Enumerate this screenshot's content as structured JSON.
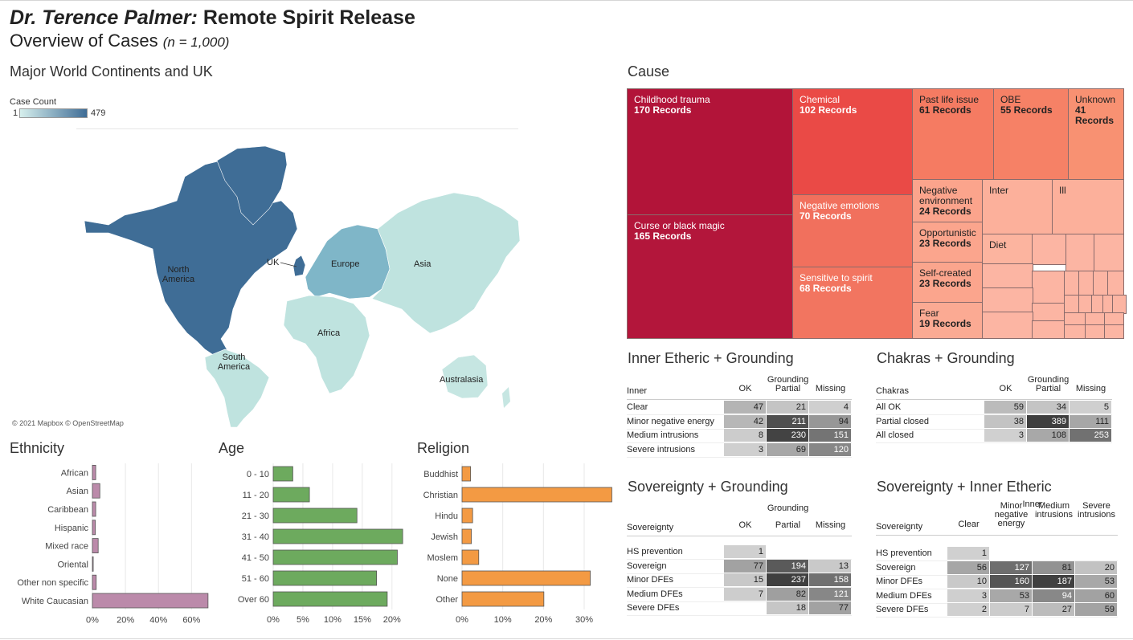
{
  "title": {
    "name": "Dr. Terence Palmer:",
    "rest": " Remote Spirit Release",
    "sub": "Overview of Cases",
    "n": "(n = 1,000)"
  },
  "map": {
    "title": "Major World Continents and UK",
    "legend_title": "Case Count",
    "legend_min": "1",
    "legend_max": "479",
    "attribution": "© 2021 Mapbox © OpenStreetMap",
    "labels": {
      "north_america": "North\nAmerica",
      "south_america": "South\nAmerica",
      "uk": "UK",
      "europe": "Europe",
      "asia": "Asia",
      "africa": "Africa",
      "australasia": "Australasia"
    },
    "colors": {
      "low": "#c6e6e2",
      "high": "#3f6d96"
    }
  },
  "cause": {
    "title": "Cause",
    "cells": [
      {
        "name": "Childhood trauma",
        "count": "170 Records",
        "color": "#b21439"
      },
      {
        "name": "Curse or black magic",
        "count": "165 Records",
        "color": "#b3163b"
      },
      {
        "name": "Chemical",
        "count": "102 Records",
        "color": "#ea4a46"
      },
      {
        "name": "Negative emotions",
        "count": "70 Records",
        "color": "#f1705d"
      },
      {
        "name": "Sensitive to spirit",
        "count": "68 Records",
        "color": "#f27560"
      },
      {
        "name": "Past life issue",
        "count": "61 Records",
        "color": "#f57b62"
      },
      {
        "name": "OBE",
        "count": "55 Records",
        "color": "#f68166"
      },
      {
        "name": "Unknown",
        "count": "41 Records",
        "color": "#f89172"
      },
      {
        "name": "Negative environment",
        "count": "24 Records",
        "color": "#fba48c"
      },
      {
        "name": "Opportunistic",
        "count": "23 Records",
        "color": "#fba58d"
      },
      {
        "name": "Self-created",
        "count": "23 Records",
        "color": "#fba58d"
      },
      {
        "name": "Fear",
        "count": "19 Records",
        "color": "#fbaa93"
      },
      {
        "name": "Inter",
        "count": "",
        "color": "#fcb09b"
      },
      {
        "name": "Ill",
        "count": "",
        "color": "#fcb09b"
      },
      {
        "name": "Diet",
        "count": "",
        "color": "#fcb49f"
      }
    ]
  },
  "inner_grounding": {
    "title": "Inner Etheric + Grounding",
    "col_group": "Grounding",
    "row_header": "Inner",
    "cols": [
      "OK",
      "Partial",
      "Missing"
    ],
    "rows": [
      {
        "label": "Clear",
        "values": [
          "47",
          "21",
          "4"
        ]
      },
      {
        "label": "Minor negative energy",
        "values": [
          "42",
          "211",
          "94"
        ]
      },
      {
        "label": "Medium intrusions",
        "values": [
          "8",
          "230",
          "151"
        ]
      },
      {
        "label": "Severe intrusions",
        "values": [
          "3",
          "69",
          "120"
        ]
      }
    ]
  },
  "chakras_grounding": {
    "title": "Chakras + Grounding",
    "col_group": "Grounding",
    "row_header": "Chakras",
    "cols": [
      "OK",
      "Partial",
      "Missing"
    ],
    "rows": [
      {
        "label": "All OK",
        "values": [
          "59",
          "34",
          "5"
        ]
      },
      {
        "label": "Partial closed",
        "values": [
          "38",
          "389",
          "111"
        ]
      },
      {
        "label": "All closed",
        "values": [
          "3",
          "108",
          "253"
        ]
      }
    ]
  },
  "sovereignty_grounding": {
    "title": "Sovereignty + Grounding",
    "col_group": "Grounding",
    "row_header": "Sovereignty",
    "cols": [
      "OK",
      "Partial",
      "Missing"
    ],
    "rows": [
      {
        "label": "HS prevention",
        "values": [
          "1",
          "",
          ""
        ]
      },
      {
        "label": "Sovereign",
        "values": [
          "77",
          "194",
          "13"
        ]
      },
      {
        "label": "Minor DFEs",
        "values": [
          "15",
          "237",
          "158"
        ]
      },
      {
        "label": "Medium DFEs",
        "values": [
          "7",
          "82",
          "121"
        ]
      },
      {
        "label": "Severe DFEs",
        "values": [
          "",
          "18",
          "77"
        ]
      }
    ]
  },
  "sovereignty_inner": {
    "title": "Sovereignty + Inner Etheric",
    "col_group": "Inner",
    "row_header": "Sovereignty",
    "cols": [
      "Clear",
      "Minor\nnegative\nenergy",
      "Medium\nintrusions",
      "Severe\nintrusions"
    ],
    "rows": [
      {
        "label": "HS prevention",
        "values": [
          "1",
          "",
          "",
          ""
        ]
      },
      {
        "label": "Sovereign",
        "values": [
          "56",
          "127",
          "81",
          "20"
        ]
      },
      {
        "label": "Minor DFEs",
        "values": [
          "10",
          "160",
          "187",
          "53"
        ]
      },
      {
        "label": "Medium DFEs",
        "values": [
          "3",
          "53",
          "94",
          "60"
        ]
      },
      {
        "label": "Severe DFEs",
        "values": [
          "2",
          "7",
          "27",
          "59"
        ]
      }
    ]
  },
  "chart_data": [
    {
      "type": "bar",
      "title": "Ethnicity",
      "orientation": "horizontal",
      "categories": [
        "African",
        "Asian",
        "Caribbean",
        "Hispanic",
        "Mixed race",
        "Oriental",
        "Other non specific",
        "White Caucasian"
      ],
      "values": [
        2,
        4.5,
        2,
        1.8,
        3.5,
        0.5,
        2.3,
        70
      ],
      "unit": "%",
      "xticks": [
        "0%",
        "20%",
        "40%",
        "60%"
      ],
      "xlim": [
        0,
        72
      ],
      "color": "#bb8aaa",
      "grid": true
    },
    {
      "type": "bar",
      "title": "Age",
      "orientation": "horizontal",
      "categories": [
        "0 - 10",
        "11 - 20",
        "21 - 30",
        "31 - 40",
        "41 - 50",
        "51 - 60",
        "Over 60"
      ],
      "values": [
        3.3,
        6.1,
        14.1,
        21.8,
        20.9,
        17.4,
        19.2
      ],
      "unit": "%",
      "xticks": [
        "0%",
        "5%",
        "10%",
        "15%",
        "20%"
      ],
      "xlim": [
        0,
        23
      ],
      "color": "#6daa5e",
      "grid": true
    },
    {
      "type": "bar",
      "title": "Religion",
      "orientation": "horizontal",
      "categories": [
        "Buddhist",
        "Christian",
        "Hindu",
        "Jewish",
        "Moslem",
        "None",
        "Other"
      ],
      "values": [
        2.1,
        36.8,
        2.6,
        2.3,
        4.1,
        31.5,
        20.1
      ],
      "unit": "%",
      "xticks": [
        "0%",
        "10%",
        "20%",
        "30%"
      ],
      "xlim": [
        0,
        37.5
      ],
      "color": "#f39a43",
      "grid": true
    }
  ]
}
